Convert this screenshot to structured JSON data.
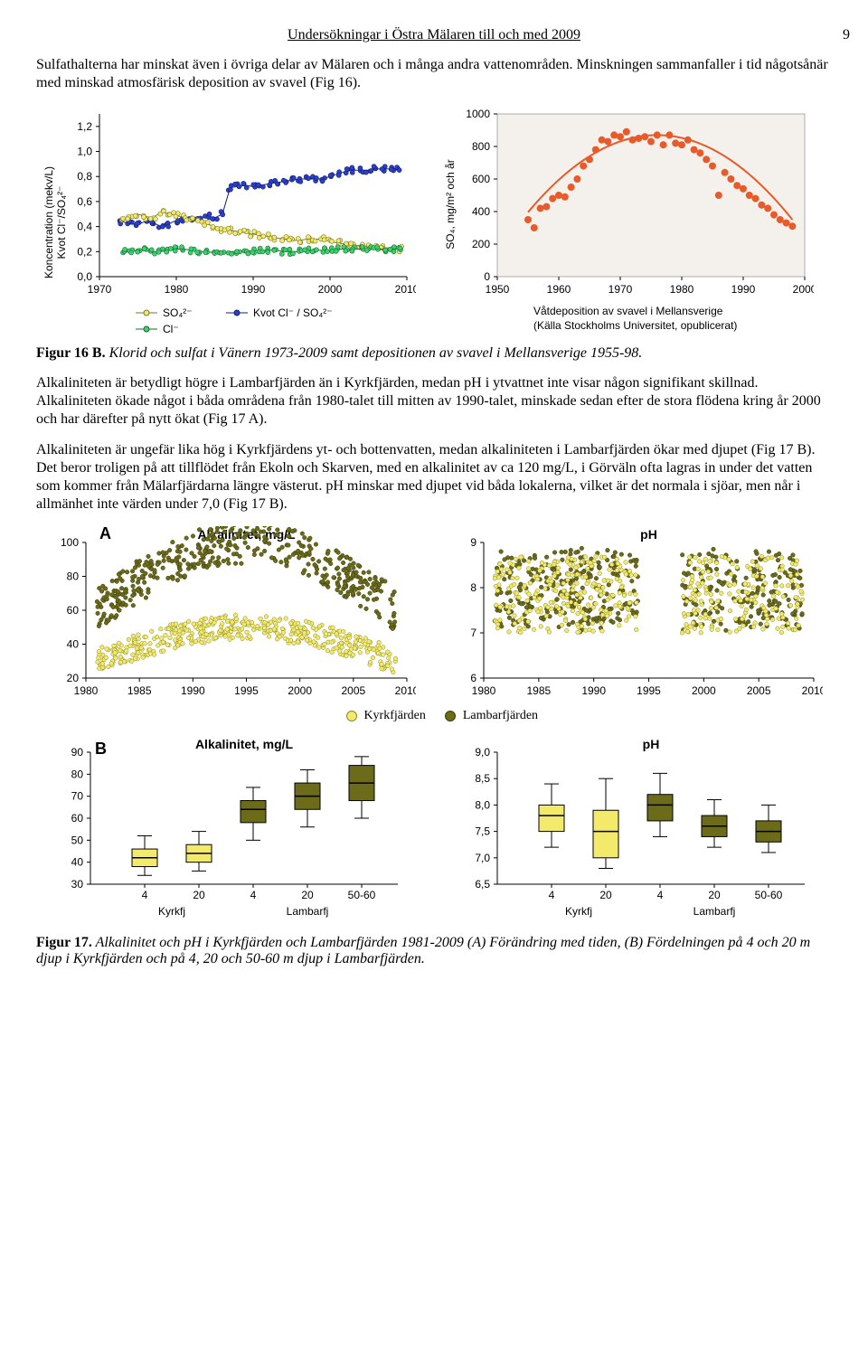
{
  "header": {
    "running": "Undersökningar i Östra Mälaren till och med 2009",
    "page": "9"
  },
  "para1": "Sulfathalterna har minskat även i övriga delar av Mälaren och i många andra vattenområden. Minskningen sammanfaller i tid någotsånär med minskad atmosfärisk deposition av svavel (Fig 16).",
  "fig16": {
    "left": {
      "type": "scatter-line",
      "ylabel": "Koncentration (mekv/L)\nKvot Cl⁻/SO₄²⁻",
      "ylim": [
        0.0,
        1.3
      ],
      "yticks": [
        "0,0",
        "0,2",
        "0,4",
        "0,6",
        "0,8",
        "1,0",
        "1,2"
      ],
      "xlim": [
        1970,
        2010
      ],
      "xticks": [
        "1970",
        "1980",
        "1990",
        "2000",
        "2010"
      ],
      "series": {
        "so4": {
          "label": "SO₄²⁻",
          "color": "#f3e96b",
          "stroke": "#7a7a2a"
        },
        "cl": {
          "label": "Cl⁻",
          "color": "#3bd16f",
          "stroke": "#1a6b2f"
        },
        "kvot": {
          "label": "Kvot Cl⁻ / SO₄²⁻",
          "color": "#2a3fd1",
          "stroke": "#16206b"
        }
      },
      "so4_vals": [
        [
          1973,
          0.45
        ],
        [
          1974,
          0.46
        ],
        [
          1975,
          0.5
        ],
        [
          1976,
          0.48
        ],
        [
          1977,
          0.47
        ],
        [
          1978,
          0.52
        ],
        [
          1979,
          0.5
        ],
        [
          1980,
          0.49
        ],
        [
          1981,
          0.47
        ],
        [
          1982,
          0.45
        ],
        [
          1983,
          0.44
        ],
        [
          1984,
          0.42
        ],
        [
          1985,
          0.4
        ],
        [
          1986,
          0.38
        ],
        [
          1987,
          0.37
        ],
        [
          1988,
          0.36
        ],
        [
          1989,
          0.35
        ],
        [
          1990,
          0.34
        ],
        [
          1991,
          0.33
        ],
        [
          1992,
          0.32
        ],
        [
          1993,
          0.31
        ],
        [
          1994,
          0.3
        ],
        [
          1995,
          0.29
        ],
        [
          1996,
          0.29
        ],
        [
          1997,
          0.3
        ],
        [
          1998,
          0.3
        ],
        [
          1999,
          0.3
        ],
        [
          2000,
          0.28
        ],
        [
          2001,
          0.27
        ],
        [
          2002,
          0.26
        ],
        [
          2003,
          0.25
        ],
        [
          2004,
          0.25
        ],
        [
          2005,
          0.24
        ],
        [
          2006,
          0.24
        ],
        [
          2007,
          0.23
        ],
        [
          2008,
          0.23
        ],
        [
          2009,
          0.22
        ]
      ],
      "cl_vals": [
        [
          1973,
          0.2
        ],
        [
          1974,
          0.2
        ],
        [
          1975,
          0.21
        ],
        [
          1976,
          0.21
        ],
        [
          1977,
          0.2
        ],
        [
          1978,
          0.2
        ],
        [
          1979,
          0.21
        ],
        [
          1980,
          0.22
        ],
        [
          1981,
          0.22
        ],
        [
          1982,
          0.21
        ],
        [
          1983,
          0.2
        ],
        [
          1984,
          0.2
        ],
        [
          1985,
          0.19
        ],
        [
          1986,
          0.19
        ],
        [
          1987,
          0.2
        ],
        [
          1988,
          0.2
        ],
        [
          1989,
          0.2
        ],
        [
          1990,
          0.21
        ],
        [
          1991,
          0.21
        ],
        [
          1992,
          0.21
        ],
        [
          1993,
          0.21
        ],
        [
          1994,
          0.2
        ],
        [
          1995,
          0.2
        ],
        [
          1996,
          0.2
        ],
        [
          1997,
          0.21
        ],
        [
          1998,
          0.21
        ],
        [
          1999,
          0.21
        ],
        [
          2000,
          0.21
        ],
        [
          2001,
          0.22
        ],
        [
          2002,
          0.22
        ],
        [
          2003,
          0.22
        ],
        [
          2004,
          0.22
        ],
        [
          2005,
          0.22
        ],
        [
          2006,
          0.22
        ],
        [
          2007,
          0.22
        ],
        [
          2008,
          0.22
        ],
        [
          2009,
          0.22
        ]
      ],
      "kvot_vals": [
        [
          1973,
          0.44
        ],
        [
          1974,
          0.42
        ],
        [
          1975,
          0.42
        ],
        [
          1976,
          0.44
        ],
        [
          1977,
          0.43
        ],
        [
          1978,
          0.4
        ],
        [
          1979,
          0.42
        ],
        [
          1980,
          0.45
        ],
        [
          1981,
          0.46
        ],
        [
          1982,
          0.47
        ],
        [
          1983,
          0.47
        ],
        [
          1984,
          0.48
        ],
        [
          1985,
          0.47
        ],
        [
          1986,
          0.5
        ],
        [
          1987,
          0.71
        ],
        [
          1988,
          0.72
        ],
        [
          1989,
          0.73
        ],
        [
          1990,
          0.72
        ],
        [
          1991,
          0.73
        ],
        [
          1992,
          0.74
        ],
        [
          1993,
          0.75
        ],
        [
          1994,
          0.76
        ],
        [
          1995,
          0.77
        ],
        [
          1996,
          0.78
        ],
        [
          1997,
          0.78
        ],
        [
          1998,
          0.78
        ],
        [
          1999,
          0.78
        ],
        [
          2000,
          0.8
        ],
        [
          2001,
          0.82
        ],
        [
          2002,
          0.84
        ],
        [
          2003,
          0.85
        ],
        [
          2004,
          0.85
        ],
        [
          2005,
          0.85
        ],
        [
          2006,
          0.86
        ],
        [
          2007,
          0.86
        ],
        [
          2008,
          0.86
        ],
        [
          2009,
          0.86
        ]
      ]
    },
    "right": {
      "type": "scatter-curve",
      "background": "#f4f1ec",
      "ylabel": "SO₄, mg/m² och år",
      "ylim": [
        0,
        1000
      ],
      "yticks": [
        "0",
        "200",
        "400",
        "600",
        "800",
        "1000"
      ],
      "xlim": [
        1950,
        2000
      ],
      "xticks": [
        "1950",
        "1960",
        "1970",
        "1980",
        "1990",
        "2000"
      ],
      "point_color": "#e85a2a",
      "curve_color": "#e85a2a",
      "footer1": "Våtdeposition av svavel i Mellansverige",
      "footer2": "(Källa Stockholms Universitet, opublicerat)",
      "points": [
        [
          1955,
          350
        ],
        [
          1956,
          300
        ],
        [
          1957,
          420
        ],
        [
          1958,
          430
        ],
        [
          1959,
          480
        ],
        [
          1960,
          500
        ],
        [
          1961,
          490
        ],
        [
          1962,
          550
        ],
        [
          1963,
          600
        ],
        [
          1964,
          680
        ],
        [
          1965,
          720
        ],
        [
          1966,
          780
        ],
        [
          1967,
          840
        ],
        [
          1968,
          830
        ],
        [
          1969,
          870
        ],
        [
          1970,
          860
        ],
        [
          1971,
          890
        ],
        [
          1972,
          840
        ],
        [
          1973,
          850
        ],
        [
          1974,
          860
        ],
        [
          1975,
          830
        ],
        [
          1976,
          870
        ],
        [
          1977,
          810
        ],
        [
          1978,
          870
        ],
        [
          1979,
          820
        ],
        [
          1980,
          810
        ],
        [
          1981,
          840
        ],
        [
          1982,
          780
        ],
        [
          1983,
          760
        ],
        [
          1984,
          720
        ],
        [
          1985,
          680
        ],
        [
          1986,
          500
        ],
        [
          1987,
          640
        ],
        [
          1988,
          600
        ],
        [
          1989,
          560
        ],
        [
          1990,
          540
        ],
        [
          1991,
          500
        ],
        [
          1992,
          480
        ],
        [
          1993,
          440
        ],
        [
          1994,
          420
        ],
        [
          1995,
          380
        ],
        [
          1996,
          350
        ],
        [
          1997,
          330
        ],
        [
          1998,
          310
        ]
      ]
    },
    "caption_b": "Figur 16 B.",
    "caption_i": " Klorid och sulfat i Vänern 1973-2009 samt depositionen av svavel i Mellansverige 1955-98."
  },
  "para2": "Alkaliniteten är betydligt högre i Lambarfjärden än i Kyrkfjärden, medan pH i ytvattnet inte visar någon signifikant skillnad. Alkaliniteten ökade något i båda områdena från 1980-talet till mitten av 1990-talet, minskade sedan efter de stora flödena kring år 2000 och har därefter på nytt ökat (Fig 17 A).",
  "para3": "Alkaliniteten är ungefär lika hög i Kyrkfjärdens yt- och bottenvatten, medan alkaliniteten i Lambarfjärden ökar med djupet (Fig 17 B). Det beror troligen på att tillflödet från Ekoln och Skarven, med en alkalinitet av ca 120 mg/L, i Görväln ofta lagras in under det vatten som kommer från Mälarfjärdarna längre västerut. pH minskar med djupet vid båda lokalerna, vilket är det normala i sjöar, men når i allmänhet inte värden under 7,0 (Fig 17 B).",
  "fig17": {
    "legend": {
      "kyrk": {
        "label": "Kyrkfjärden",
        "color": "#f3e96b",
        "stroke": "#8a8a2a"
      },
      "lamb": {
        "label": "Lambarfjärden",
        "color": "#6b6b1a",
        "stroke": "#3a3a0a"
      }
    },
    "A": {
      "alk": {
        "title": "Alkalinitet, mg/L",
        "label_A": "A",
        "ylim": [
          20,
          100
        ],
        "yticks": [
          "20",
          "40",
          "60",
          "80",
          "100"
        ],
        "xlim": [
          1980,
          2010
        ],
        "xticks": [
          "1980",
          "1985",
          "1990",
          "1995",
          "2000",
          "2005",
          "2010"
        ]
      },
      "ph": {
        "title": "pH",
        "ylim": [
          6,
          9
        ],
        "yticks": [
          "6",
          "7",
          "8",
          "9"
        ],
        "xlim": [
          1980,
          2010
        ],
        "xticks": [
          "1980",
          "1985",
          "1990",
          "1995",
          "2000",
          "2005",
          "2010"
        ]
      }
    },
    "B": {
      "alk": {
        "title": "Alkalinitet, mg/L",
        "label_B": "B",
        "ylim": [
          30,
          90
        ],
        "yticks": [
          "30",
          "40",
          "50",
          "60",
          "70",
          "80",
          "90"
        ],
        "cats": [
          "4",
          "20",
          "4",
          "20",
          "50-60"
        ],
        "groups": [
          "Kyrkfj",
          "Lambarfj"
        ],
        "boxes": [
          {
            "fill": "#f3e96b",
            "q1": 38,
            "med": 42,
            "q3": 46,
            "lo": 34,
            "hi": 52
          },
          {
            "fill": "#f3e96b",
            "q1": 40,
            "med": 44,
            "q3": 48,
            "lo": 36,
            "hi": 54
          },
          {
            "fill": "#6b6b1a",
            "q1": 58,
            "med": 64,
            "q3": 68,
            "lo": 50,
            "hi": 74
          },
          {
            "fill": "#6b6b1a",
            "q1": 64,
            "med": 70,
            "q3": 76,
            "lo": 56,
            "hi": 82
          },
          {
            "fill": "#6b6b1a",
            "q1": 68,
            "med": 76,
            "q3": 84,
            "lo": 60,
            "hi": 88
          }
        ]
      },
      "ph": {
        "title": "pH",
        "ylim": [
          6.5,
          9.0
        ],
        "yticks": [
          "6,5",
          "7,0",
          "7,5",
          "8,0",
          "8,5",
          "9,0"
        ],
        "cats": [
          "4",
          "20",
          "4",
          "20",
          "50-60"
        ],
        "groups": [
          "Kyrkfj",
          "Lambarfj"
        ],
        "boxes": [
          {
            "fill": "#f3e96b",
            "q1": 7.5,
            "med": 7.8,
            "q3": 8.0,
            "lo": 7.2,
            "hi": 8.4
          },
          {
            "fill": "#f3e96b",
            "q1": 7.0,
            "med": 7.5,
            "q3": 7.9,
            "lo": 6.8,
            "hi": 8.5
          },
          {
            "fill": "#6b6b1a",
            "q1": 7.7,
            "med": 8.0,
            "q3": 8.2,
            "lo": 7.4,
            "hi": 8.6
          },
          {
            "fill": "#6b6b1a",
            "q1": 7.4,
            "med": 7.6,
            "q3": 7.8,
            "lo": 7.2,
            "hi": 8.1
          },
          {
            "fill": "#6b6b1a",
            "q1": 7.3,
            "med": 7.5,
            "q3": 7.7,
            "lo": 7.1,
            "hi": 8.0
          }
        ]
      }
    },
    "caption_b": "Figur 17.",
    "caption_i": " Alkalinitet och pH i Kyrkfjärden och Lambarfjärden 1981-2009 (A) Förändring med tiden, (B) Fördelningen på 4 och 20 m djup i Kyrkfjärden och på 4, 20 och 50-60 m djup i Lambarfjärden."
  }
}
